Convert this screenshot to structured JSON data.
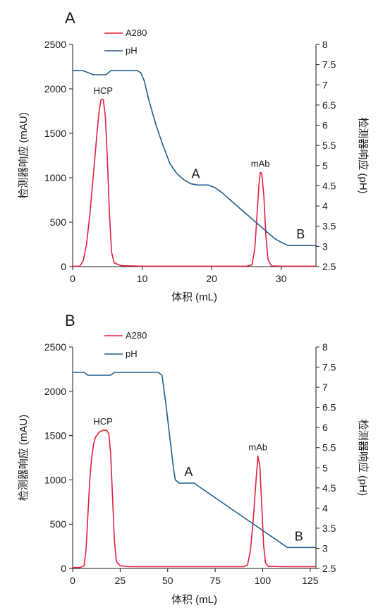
{
  "colors": {
    "a280": "#e0203a",
    "ph": "#1f5e8e",
    "axis": "#1a1a1a"
  },
  "chart_data": [
    {
      "panel": "A",
      "type": "line",
      "xlabel": "体积 (mL)",
      "ylabel": "检测器响应 (mAU)",
      "y2label": "检测器响应 (pH)",
      "xlim": [
        0,
        35
      ],
      "ylim": [
        0,
        2500
      ],
      "y2lim": [
        2.5,
        8
      ],
      "xticks": [
        0,
        10,
        20,
        30
      ],
      "yticks": [
        0,
        500,
        1000,
        1500,
        2000,
        2500
      ],
      "y2ticks": [
        2.5,
        3,
        3.5,
        4,
        4.5,
        5,
        5.5,
        6,
        6.5,
        7,
        7.5,
        8
      ],
      "legend_placement": "top-center",
      "series": [
        {
          "name": "A280",
          "axis": "left",
          "color": "#e0203a",
          "points": [
            [
              0,
              5
            ],
            [
              1,
              5
            ],
            [
              1.5,
              60
            ],
            [
              2,
              250
            ],
            [
              2.5,
              600
            ],
            [
              3,
              1050
            ],
            [
              3.5,
              1500
            ],
            [
              3.8,
              1750
            ],
            [
              4.1,
              1880
            ],
            [
              4.4,
              1880
            ],
            [
              4.7,
              1700
            ],
            [
              5,
              1200
            ],
            [
              5.3,
              600
            ],
            [
              5.6,
              160
            ],
            [
              6,
              40
            ],
            [
              7,
              10
            ],
            [
              10,
              5
            ],
            [
              20,
              5
            ],
            [
              25,
              5
            ],
            [
              25.8,
              20
            ],
            [
              26.2,
              200
            ],
            [
              26.5,
              550
            ],
            [
              26.8,
              920
            ],
            [
              27,
              1060
            ],
            [
              27.2,
              1050
            ],
            [
              27.5,
              800
            ],
            [
              27.8,
              350
            ],
            [
              28.1,
              80
            ],
            [
              28.6,
              8
            ],
            [
              30,
              5
            ],
            [
              35,
              5
            ]
          ]
        },
        {
          "name": "pH",
          "axis": "right",
          "color": "#1f5e8e",
          "points": [
            [
              0,
              7.35
            ],
            [
              1.5,
              7.35
            ],
            [
              3,
              7.25
            ],
            [
              4.8,
              7.25
            ],
            [
              5.5,
              7.35
            ],
            [
              9.3,
              7.35
            ],
            [
              9.8,
              7.3
            ],
            [
              10.3,
              7.1
            ],
            [
              11,
              6.6
            ],
            [
              12,
              6.0
            ],
            [
              13,
              5.5
            ],
            [
              14,
              5.05
            ],
            [
              15,
              4.8
            ],
            [
              16,
              4.65
            ],
            [
              17,
              4.55
            ],
            [
              18,
              4.52
            ],
            [
              19.5,
              4.52
            ],
            [
              20.5,
              4.45
            ],
            [
              21.5,
              4.33
            ],
            [
              23,
              4.1
            ],
            [
              25,
              3.8
            ],
            [
              27,
              3.5
            ],
            [
              29,
              3.2
            ],
            [
              30,
              3.1
            ],
            [
              31,
              3.02
            ],
            [
              35,
              3.02
            ]
          ]
        }
      ],
      "annotations": [
        {
          "text": "HCP",
          "x": 4.4,
          "y": 1880,
          "axis": "left"
        },
        {
          "text": "mAb",
          "x": 27.0,
          "y": 1060,
          "axis": "left"
        },
        {
          "text": "A",
          "x": 17.7,
          "y": 4.52,
          "axis": "right"
        },
        {
          "text": "B",
          "x": 32.8,
          "y": 3.02,
          "axis": "right"
        }
      ]
    },
    {
      "panel": "B",
      "type": "line",
      "xlabel": "体积 (mL)",
      "ylabel": "检测器响应 (mAU)",
      "y2label": "检测器响应 (pH)",
      "xlim": [
        0,
        128
      ],
      "ylim": [
        0,
        2500
      ],
      "y2lim": [
        2.5,
        8
      ],
      "xticks": [
        0,
        25,
        50,
        75,
        100,
        125
      ],
      "yticks": [
        0,
        500,
        1000,
        1500,
        2000,
        2500
      ],
      "y2ticks": [
        2.5,
        3,
        3.5,
        4,
        4.5,
        5,
        5.5,
        6,
        6.5,
        7,
        7.5,
        8
      ],
      "legend_placement": "top-center",
      "series": [
        {
          "name": "A280",
          "axis": "left",
          "color": "#e0203a",
          "points": [
            [
              0,
              10
            ],
            [
              4,
              10
            ],
            [
              6,
              30
            ],
            [
              7,
              200
            ],
            [
              8,
              600
            ],
            [
              9,
              1000
            ],
            [
              10,
              1250
            ],
            [
              11,
              1400
            ],
            [
              12,
              1480
            ],
            [
              14,
              1540
            ],
            [
              16,
              1560
            ],
            [
              18,
              1560
            ],
            [
              19,
              1520
            ],
            [
              20,
              1300
            ],
            [
              21,
              800
            ],
            [
              22,
              300
            ],
            [
              23,
              80
            ],
            [
              25,
              30
            ],
            [
              30,
              20
            ],
            [
              50,
              20
            ],
            [
              75,
              20
            ],
            [
              90,
              20
            ],
            [
              92,
              40
            ],
            [
              93.5,
              200
            ],
            [
              95,
              550
            ],
            [
              96.5,
              1000
            ],
            [
              97.5,
              1270
            ],
            [
              98.5,
              1150
            ],
            [
              99.5,
              700
            ],
            [
              100.5,
              250
            ],
            [
              101.5,
              60
            ],
            [
              103,
              25
            ],
            [
              110,
              20
            ],
            [
              125,
              20
            ],
            [
              128,
              20
            ]
          ]
        },
        {
          "name": "pH",
          "axis": "right",
          "color": "#1f5e8e",
          "points": [
            [
              0,
              7.37
            ],
            [
              6,
              7.37
            ],
            [
              8,
              7.3
            ],
            [
              20,
              7.3
            ],
            [
              22,
              7.37
            ],
            [
              45,
              7.37
            ],
            [
              47,
              7.3
            ],
            [
              49,
              6.6
            ],
            [
              51,
              5.8
            ],
            [
              53,
              5.0
            ],
            [
              54,
              4.7
            ],
            [
              56,
              4.62
            ],
            [
              64,
              4.62
            ],
            [
              66,
              4.55
            ],
            [
              113,
              3.02
            ],
            [
              128,
              3.02
            ]
          ]
        }
      ],
      "annotations": [
        {
          "text": "HCP",
          "x": 16,
          "y": 1560,
          "axis": "left"
        },
        {
          "text": "mAb",
          "x": 97.5,
          "y": 1270,
          "axis": "left"
        },
        {
          "text": "A",
          "x": 61,
          "y": 4.62,
          "axis": "right"
        },
        {
          "text": "B",
          "x": 119,
          "y": 3.02,
          "axis": "right"
        }
      ]
    }
  ]
}
